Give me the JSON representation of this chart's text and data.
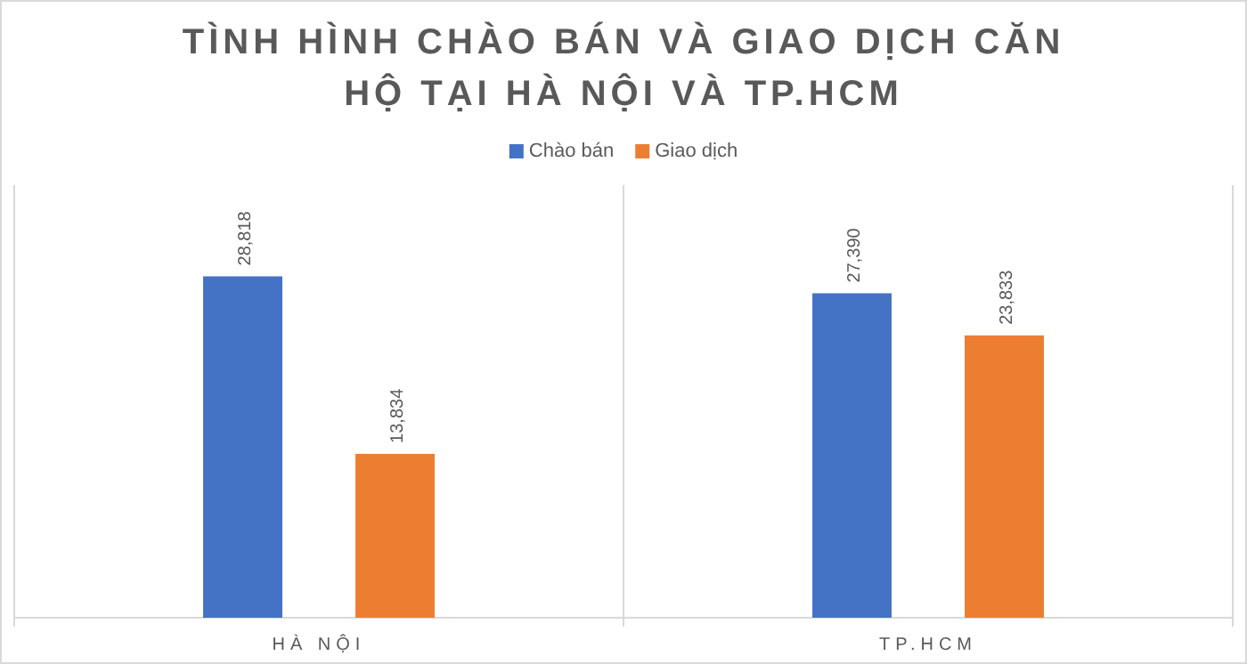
{
  "chart_data": {
    "type": "bar",
    "title": "TÌNH HÌNH CHÀO BÁN VÀ GIAO DỊCH CĂN HỘ TẠI HÀ NỘI VÀ TP.HCM",
    "categories": [
      "HÀ NỘI",
      "TP.HCM"
    ],
    "series": [
      {
        "name": "Chào bán",
        "color": "#4472c4",
        "values": [
          28818,
          27390
        ],
        "value_labels": [
          "28,818",
          "27,390"
        ]
      },
      {
        "name": "Giao dịch",
        "color": "#ed7d31",
        "values": [
          13834,
          23833
        ],
        "value_labels": [
          "13,834",
          "23,833"
        ]
      }
    ],
    "legend": "top"
  }
}
